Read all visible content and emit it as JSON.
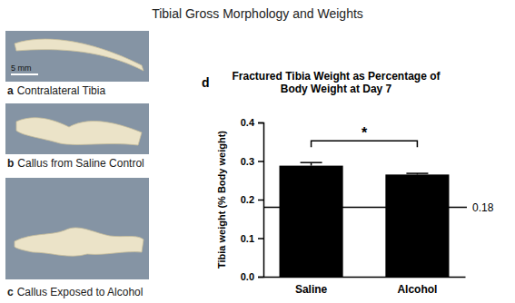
{
  "figure": {
    "title": "Tibial Gross Morphology and Weights",
    "scale_bar": "5 mm",
    "panels": [
      {
        "letter": "a",
        "label": "Contralateral Tibia"
      },
      {
        "letter": "b",
        "label": "Callus from Saline Control"
      },
      {
        "letter": "c",
        "label": "Callus Exposed to Alcohol"
      }
    ],
    "chart_panel": "d"
  },
  "chart_data": {
    "type": "bar",
    "title": "Fractured Tibia Weight as Percentage of Body Weight at Day 7",
    "y_label": "Tibia weight (% Body weight)",
    "categories": [
      "Saline",
      "Alcohol"
    ],
    "values": [
      0.288,
      0.265
    ],
    "errors": [
      0.008,
      0.003
    ],
    "color": "#000000",
    "ylim": [
      0,
      0.4
    ],
    "yticks": [
      {
        "value": 0,
        "label": "0.0"
      },
      0.1,
      0.2,
      0.3,
      0.4
    ],
    "reference_lines": [
      0.18
    ],
    "annotations": [
      "*"
    ]
  }
}
